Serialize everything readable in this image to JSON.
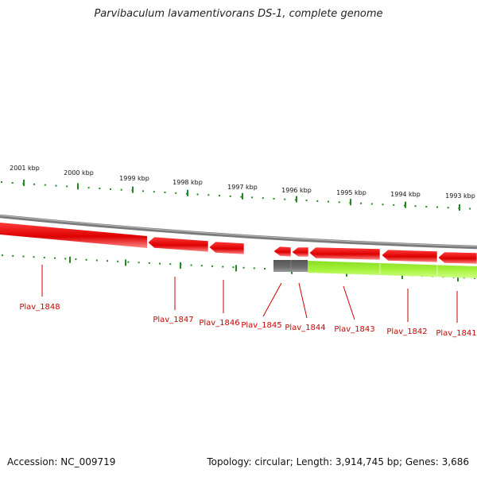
{
  "title": "Parvibaculum lavamentivorans DS-1, complete genome",
  "footer": {
    "accession": "Accession: NC_009719",
    "summary": "Topology: circular; Length: 3,914,745 bp; Genes: 3,686"
  },
  "kbp_ticks": [
    "2001 kbp",
    "2000 kbp",
    "1999 kbp",
    "1998 kbp",
    "1997 kbp",
    "1996 kbp",
    "1995 kbp",
    "1994 kbp",
    "1993 kbp"
  ],
  "genes": [
    "Plav_1848",
    "Plav_1847",
    "Plav_1846",
    "Plav_1845",
    "Plav_1844",
    "Plav_1843",
    "Plav_1842",
    "Plav_1841"
  ],
  "colors": {
    "forward_strand": "#ee0000",
    "pseudo": "#666666",
    "reverse_strand": "#99ee33",
    "tick": "#228822",
    "backbone": "#888888",
    "label": "#cc0000"
  }
}
